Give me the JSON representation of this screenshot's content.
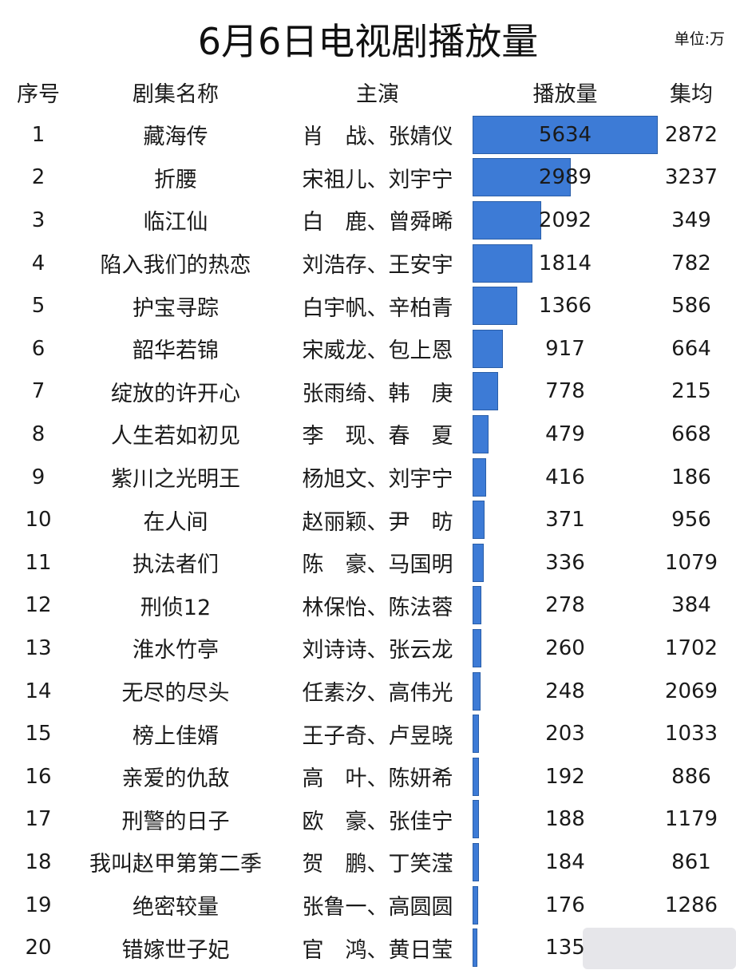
{
  "title": "6月6日电视剧播放量",
  "unit": "单位:万",
  "chart_data": {
    "type": "table",
    "columns": [
      "序号",
      "剧集名称",
      "主演",
      "播放量",
      "集均"
    ],
    "bar_max": 5634,
    "rows": [
      {
        "rank": "1",
        "name": "藏海传",
        "cast": "肖　战、张婧仪",
        "views": 5634,
        "avg": "2872"
      },
      {
        "rank": "2",
        "name": "折腰",
        "cast": "宋祖儿、刘宇宁",
        "views": 2989,
        "avg": "3237"
      },
      {
        "rank": "3",
        "name": "临江仙",
        "cast": "白　鹿、曾舜晞",
        "views": 2092,
        "avg": "349"
      },
      {
        "rank": "4",
        "name": "陷入我们的热恋",
        "cast": "刘浩存、王安宇",
        "views": 1814,
        "avg": "782"
      },
      {
        "rank": "5",
        "name": "护宝寻踪",
        "cast": "白宇帆、辛柏青",
        "views": 1366,
        "avg": "586"
      },
      {
        "rank": "6",
        "name": "韶华若锦",
        "cast": "宋威龙、包上恩",
        "views": 917,
        "avg": "664"
      },
      {
        "rank": "7",
        "name": "绽放的许开心",
        "cast": "张雨绮、韩　庚",
        "views": 778,
        "avg": "215"
      },
      {
        "rank": "8",
        "name": "人生若如初见",
        "cast": "李　现、春　夏",
        "views": 479,
        "avg": "668"
      },
      {
        "rank": "9",
        "name": "紫川之光明王",
        "cast": "杨旭文、刘宇宁",
        "views": 416,
        "avg": "186"
      },
      {
        "rank": "10",
        "name": "在人间",
        "cast": "赵丽颖、尹　昉",
        "views": 371,
        "avg": "956"
      },
      {
        "rank": "11",
        "name": "执法者们",
        "cast": "陈　豪、马国明",
        "views": 336,
        "avg": "1079"
      },
      {
        "rank": "12",
        "name": "刑侦12",
        "cast": "林保怡、陈法蓉",
        "views": 278,
        "avg": "384"
      },
      {
        "rank": "13",
        "name": "淮水竹亭",
        "cast": "刘诗诗、张云龙",
        "views": 260,
        "avg": "1702"
      },
      {
        "rank": "14",
        "name": "无尽的尽头",
        "cast": "任素汐、高伟光",
        "views": 248,
        "avg": "2069"
      },
      {
        "rank": "15",
        "name": "榜上佳婿",
        "cast": "王子奇、卢昱晓",
        "views": 203,
        "avg": "1033"
      },
      {
        "rank": "16",
        "name": "亲爱的仇敌",
        "cast": "高　叶、陈妍希",
        "views": 192,
        "avg": "886"
      },
      {
        "rank": "17",
        "name": "刑警的日子",
        "cast": "欧　豪、张佳宁",
        "views": 188,
        "avg": "1179"
      },
      {
        "rank": "18",
        "name": "我叫赵甲第第二季",
        "cast": "贺　鹏、丁笑滢",
        "views": 184,
        "avg": "861"
      },
      {
        "rank": "19",
        "name": "绝密较量",
        "cast": "张鲁一、高圆圆",
        "views": 176,
        "avg": "1286"
      },
      {
        "rank": "20",
        "name": "错嫁世子妃",
        "cast": "官　鸿、黄日莹",
        "views": 135,
        "avg": ""
      }
    ],
    "bar_color": "#3d7bd6"
  }
}
